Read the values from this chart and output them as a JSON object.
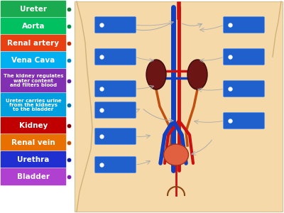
{
  "fig_bg": "#ffffff",
  "left_labels": [
    {
      "text": "Ureter",
      "color": "#1aaa50",
      "dot_color": "#1a7a35",
      "fontsize": 7.5,
      "multiline": false
    },
    {
      "text": "Aorta",
      "color": "#00c060",
      "dot_color": "#009040",
      "fontsize": 7.5,
      "multiline": false
    },
    {
      "text": "Renal artery",
      "color": "#e84010",
      "dot_color": "#c03000",
      "fontsize": 7.5,
      "multiline": false
    },
    {
      "text": "Vena Cava",
      "color": "#00b0f0",
      "dot_color": "#0080c0",
      "fontsize": 7.5,
      "multiline": false
    },
    {
      "text": "The kidney regulates\nwater content\nand filters blood",
      "color": "#8030b0",
      "dot_color": "#6020a0",
      "fontsize": 5.0,
      "multiline": true
    },
    {
      "text": "Ureter carries urine\nfrom the kidneys\nto the bladder",
      "color": "#00a0e0",
      "dot_color": "#0070a8",
      "fontsize": 5.0,
      "multiline": true
    },
    {
      "text": "Kidney",
      "color": "#c00000",
      "dot_color": "#800000",
      "fontsize": 7.5,
      "multiline": false
    },
    {
      "text": "Renal vein",
      "color": "#e87000",
      "dot_color": "#c05000",
      "fontsize": 7.5,
      "multiline": false
    },
    {
      "text": "Urethra",
      "color": "#2030d0",
      "dot_color": "#1020a0",
      "fontsize": 7.5,
      "multiline": false
    },
    {
      "text": "Bladder",
      "color": "#b040d0",
      "dot_color": "#8020b0",
      "fontsize": 7.5,
      "multiline": false
    }
  ],
  "body_color": "#f5d9a8",
  "body_edge_color": "#c8a870",
  "blue_box_color": "#2060cc",
  "blue_box_edge": "#5090ee",
  "kidney_color": "#6b1515",
  "kidney_edge": "#3a0a0a",
  "bladder_color": "#e06040",
  "bladder_edge": "#a03020",
  "aorta_color": "#cc1010",
  "vena_color": "#1040c0",
  "ureter_tube_color": "#c05010",
  "spine_color": "#8b7355",
  "connector_color": "#999999"
}
